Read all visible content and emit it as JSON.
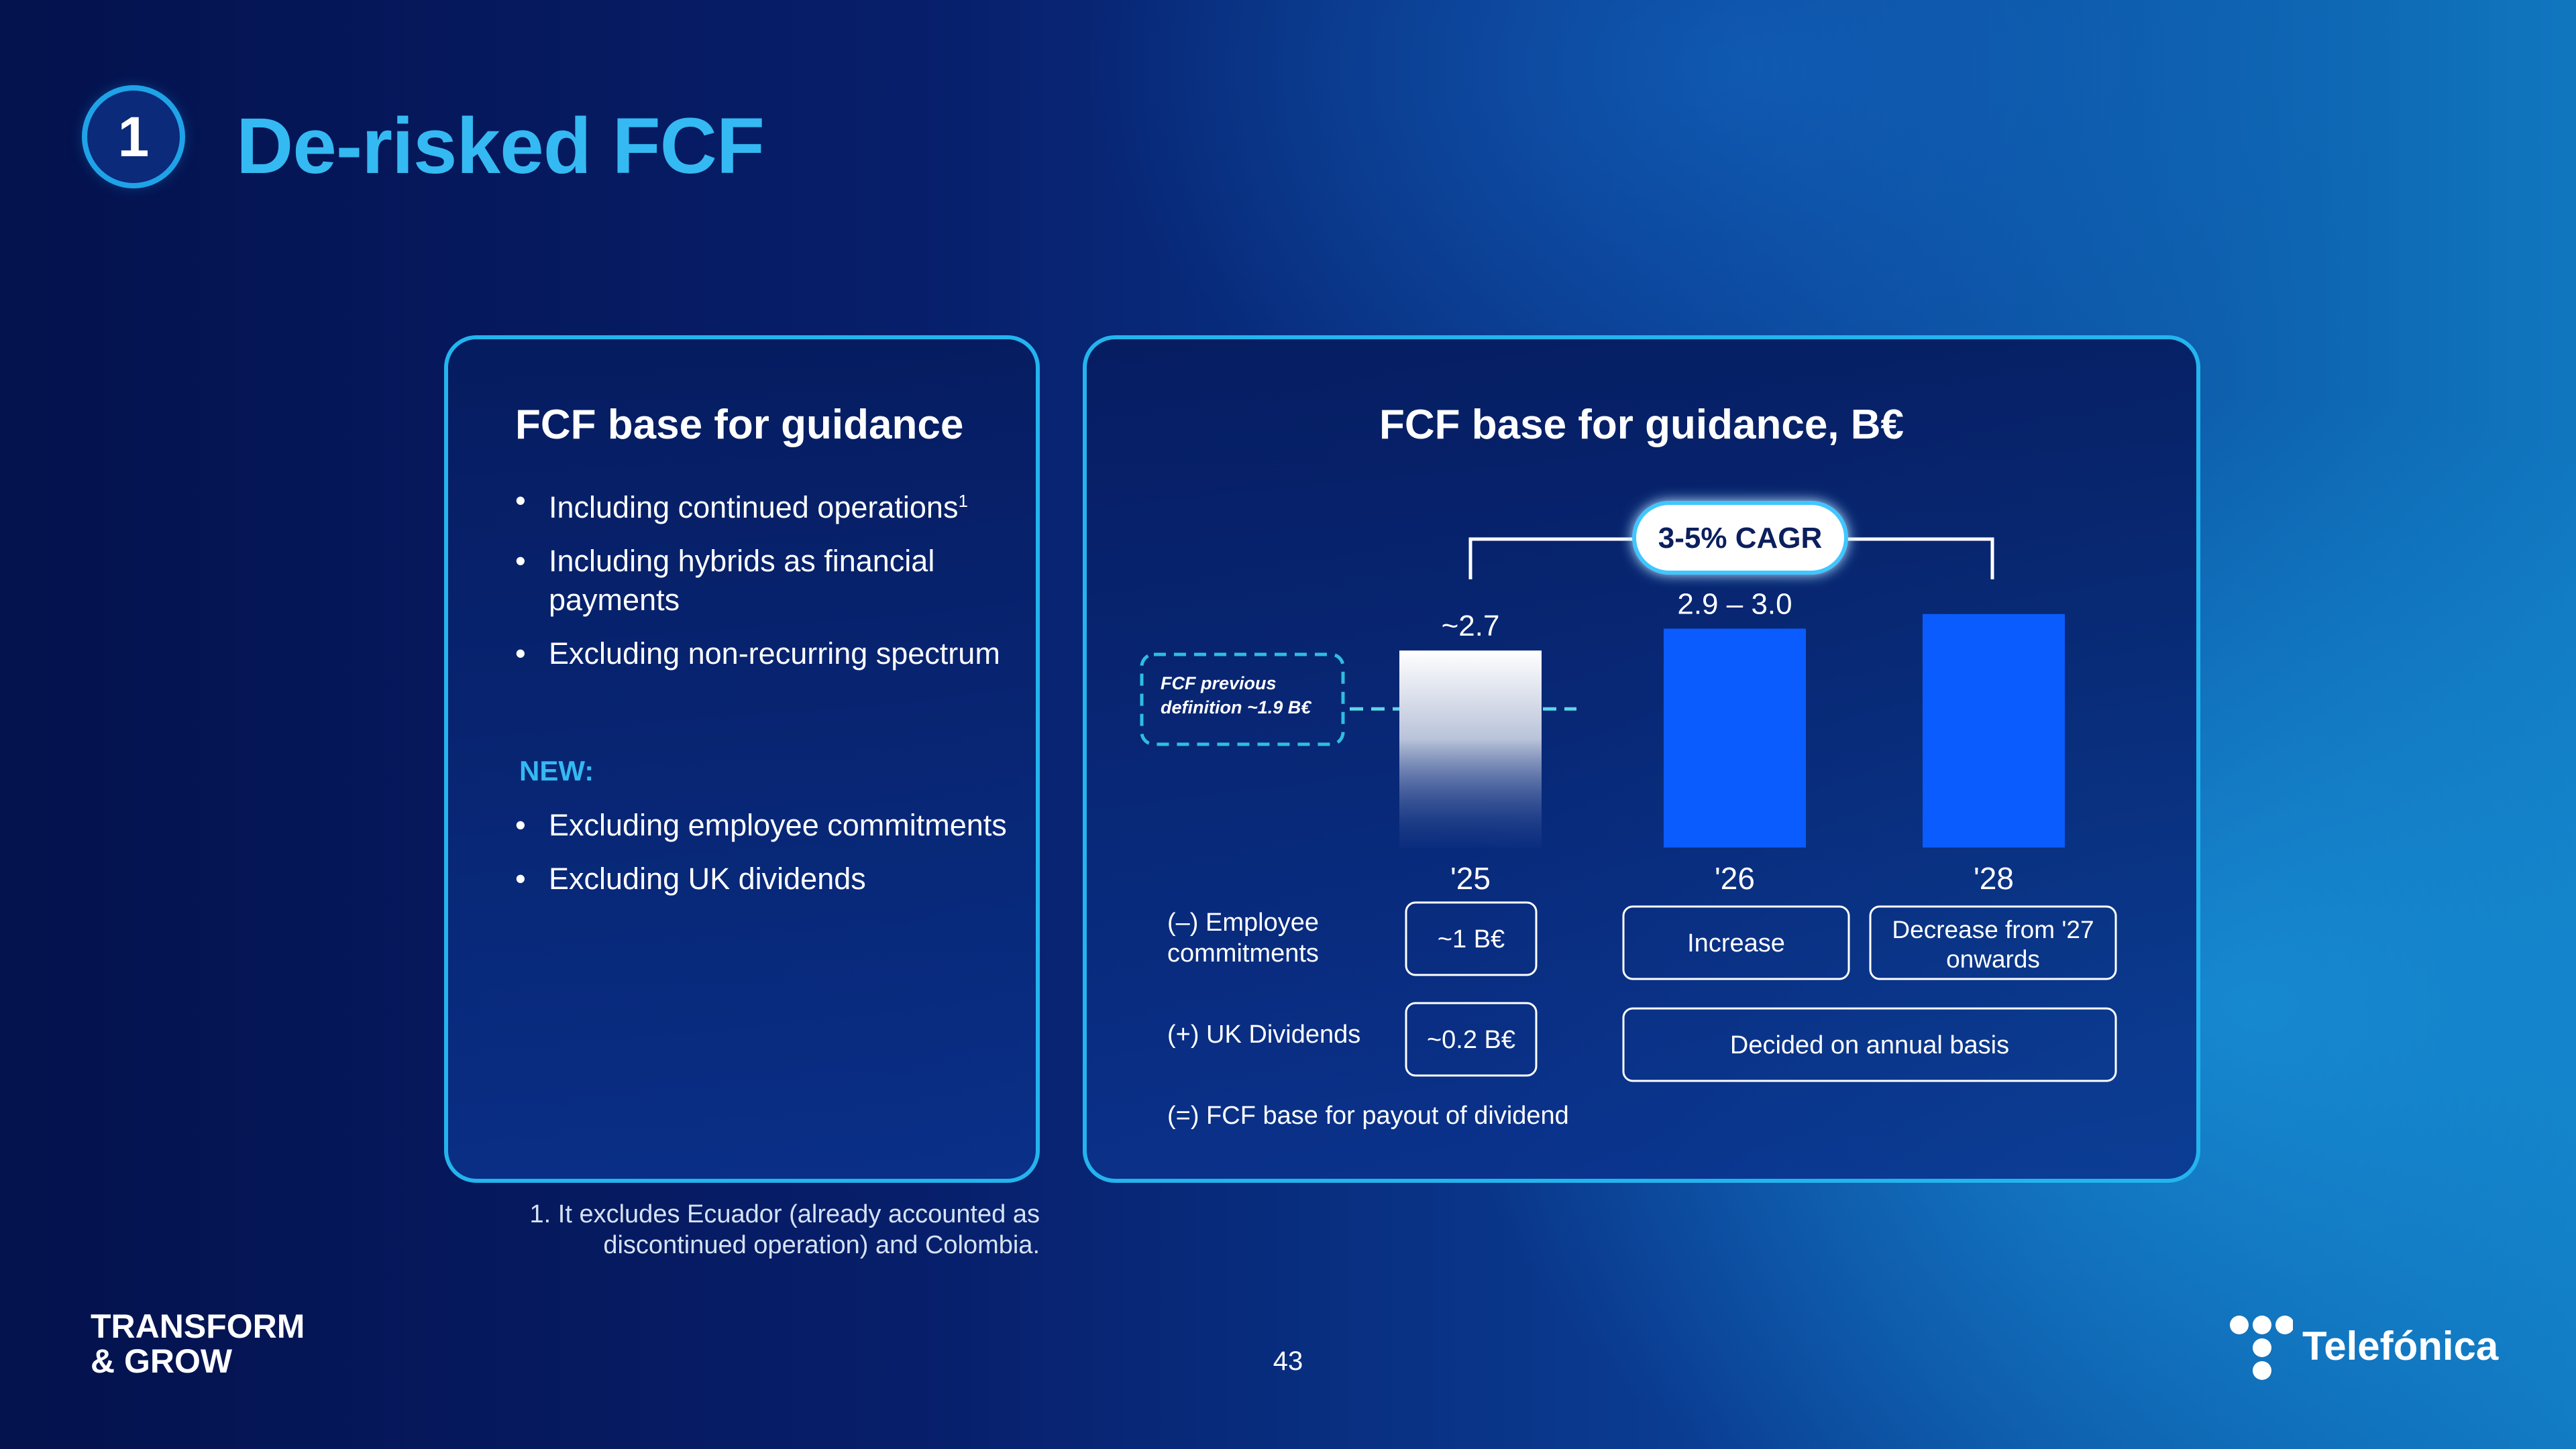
{
  "header": {
    "badge_number": "1",
    "title": "De-risked FCF"
  },
  "left_panel": {
    "title": "FCF base for guidance",
    "bullets": [
      {
        "text": "Including continued operations",
        "sup": "1"
      },
      {
        "text": "Including hybrids as financial payments"
      },
      {
        "text": "Excluding non-recurring spectrum"
      }
    ],
    "new_label": "NEW:",
    "new_bullets": [
      {
        "text": "Excluding employee commitments"
      },
      {
        "text": "Excluding UK dividends"
      }
    ]
  },
  "chart_data": {
    "type": "bar",
    "title": "FCF base for guidance, B€",
    "categories": [
      "'25",
      "'26",
      "'28"
    ],
    "values": [
      2.7,
      3.0,
      3.2
    ],
    "value_labels": [
      "~2.7",
      "2.9 – 3.0",
      ""
    ],
    "ylim": [
      0,
      3.4
    ],
    "cagr_label": "3-5% CAGR",
    "previous_definition": {
      "label": "FCF previous definition ~1.9 B€",
      "value": 1.9
    },
    "colors": {
      "bar": "#0a5cff",
      "bar_2025_top": "#ffffff",
      "accent": "#23b4ee"
    }
  },
  "adjustments": [
    {
      "label": "(–) Employee commitments",
      "y2025": "~1 B€",
      "y2026": "Increase",
      "y2028": "Decrease from '27 onwards"
    },
    {
      "label": "(+) UK Dividends",
      "y2025": "~0.2 B€",
      "y2026_2028": "Decided on annual basis"
    },
    {
      "label": "(=) FCF base for payout of dividend"
    }
  ],
  "footnote": "1. It excludes Ecuador (already accounted as discontinued operation) and Colombia.",
  "footer": {
    "brand_line1": "TRANSFORM",
    "brand_line2": "& GROW",
    "page_number": "43",
    "logo_text": "Telefónica"
  }
}
